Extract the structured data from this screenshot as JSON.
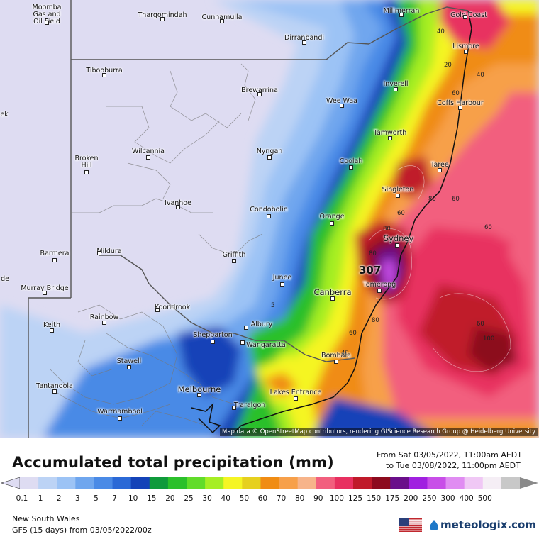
{
  "map": {
    "attribution": "Map data © OpenStreetMap contributors, rendering GIScience Research Group @ Heidelberg University",
    "max_value_label": "307",
    "contour_labels": [
      "40",
      "20",
      "40",
      "60",
      "80",
      "60",
      "60",
      "80",
      "80",
      "60",
      "80",
      "60",
      "100",
      "5",
      "40",
      "60"
    ],
    "places": [
      {
        "name": "Moomba Gas and Oil Field",
        "lines": [
          "Moomba",
          "Gas and",
          "Oil Field"
        ],
        "size": "small"
      },
      {
        "name": "Thargomindah",
        "lines": [
          "Thargomindah"
        ],
        "size": "small"
      },
      {
        "name": "Cunnamulla",
        "lines": [
          "Cunnamulla"
        ],
        "size": "small"
      },
      {
        "name": "Millmerran",
        "lines": [
          "Millmerran"
        ],
        "size": "small"
      },
      {
        "name": "Gold Coast",
        "lines": [
          "Gold Coast"
        ],
        "size": "small"
      },
      {
        "name": "Dirranbandi",
        "lines": [
          "Dirranbandi"
        ],
        "size": "small"
      },
      {
        "name": "Lismore",
        "lines": [
          "Lismore"
        ],
        "size": "small"
      },
      {
        "name": "Tibooburra",
        "lines": [
          "Tibooburra"
        ],
        "size": "small"
      },
      {
        "name": "Brewarrina",
        "lines": [
          "Brewarrina"
        ],
        "size": "small"
      },
      {
        "name": "Inverell",
        "lines": [
          "Inverell"
        ],
        "size": "small"
      },
      {
        "name": "Wee Waa",
        "lines": [
          "Wee Waa"
        ],
        "size": "small"
      },
      {
        "name": "Coffs Harbour",
        "lines": [
          "Coffs Harbour"
        ],
        "size": "small"
      },
      {
        "name": "Tamworth",
        "lines": [
          "Tamworth"
        ],
        "size": "small"
      },
      {
        "name": "Wilcannia",
        "lines": [
          "Wilcannia"
        ],
        "size": "small"
      },
      {
        "name": "Nyngan",
        "lines": [
          "Nyngan"
        ],
        "size": "small"
      },
      {
        "name": "Broken Hill",
        "lines": [
          "Broken",
          "Hill"
        ],
        "size": "small"
      },
      {
        "name": "Coolah",
        "lines": [
          "Coolah"
        ],
        "size": "small"
      },
      {
        "name": "Taree",
        "lines": [
          "Taree"
        ],
        "size": "small"
      },
      {
        "name": "Singleton",
        "lines": [
          "Singleton"
        ],
        "size": "small"
      },
      {
        "name": "Ivanhoe",
        "lines": [
          "Ivanhoe"
        ],
        "size": "small"
      },
      {
        "name": "Condobolin",
        "lines": [
          "Condobolin"
        ],
        "size": "small"
      },
      {
        "name": "Orange",
        "lines": [
          "Orange"
        ],
        "size": "small"
      },
      {
        "name": "Sydney",
        "lines": [
          "Sydney"
        ],
        "size": "big"
      },
      {
        "name": "Barmera",
        "lines": [
          "Barmera"
        ],
        "size": "small"
      },
      {
        "name": "Mildura",
        "lines": [
          "Mildura"
        ],
        "size": "small"
      },
      {
        "name": "Griffith",
        "lines": [
          "Griffith"
        ],
        "size": "small"
      },
      {
        "name": "Junee",
        "lines": [
          "Junee"
        ],
        "size": "small"
      },
      {
        "name": "Murray Bridge",
        "lines": [
          "Murray Bridge"
        ],
        "size": "small"
      },
      {
        "name": "Canberra",
        "lines": [
          "Canberra"
        ],
        "size": "big"
      },
      {
        "name": "Tomerong",
        "lines": [
          "Tomerong"
        ],
        "size": "small"
      },
      {
        "name": "Koondrook",
        "lines": [
          "Koondrook"
        ],
        "size": "small"
      },
      {
        "name": "Rainbow",
        "lines": [
          "Rainbow"
        ],
        "size": "small"
      },
      {
        "name": "Albury",
        "lines": [
          "Albury"
        ],
        "size": "small"
      },
      {
        "name": "Keith",
        "lines": [
          "Keith"
        ],
        "size": "small"
      },
      {
        "name": "Shepparton",
        "lines": [
          "Shepparton"
        ],
        "size": "small"
      },
      {
        "name": "Wangaratta",
        "lines": [
          "Wangaratta"
        ],
        "size": "small"
      },
      {
        "name": "Bombala",
        "lines": [
          "Bombala"
        ],
        "size": "small"
      },
      {
        "name": "Stawell",
        "lines": [
          "Stawell"
        ],
        "size": "small"
      },
      {
        "name": "Tantanoola",
        "lines": [
          "Tantanoola"
        ],
        "size": "small"
      },
      {
        "name": "Melbourne",
        "lines": [
          "Melbourne"
        ],
        "size": "big"
      },
      {
        "name": "Lakes Entrance",
        "lines": [
          "Lakes Entrance"
        ],
        "size": "small"
      },
      {
        "name": "Warrnambool",
        "lines": [
          "Warrnambool"
        ],
        "size": "small"
      },
      {
        "name": "Traralgon",
        "lines": [
          "Traralgon"
        ],
        "size": "small"
      },
      {
        "name": "ek",
        "lines": [
          "ek"
        ],
        "size": "small"
      },
      {
        "name": "de",
        "lines": [
          "de"
        ],
        "size": "small"
      }
    ]
  },
  "legend": {
    "title": "Accumulated total precipitation (mm)",
    "period_from": "From Sat 03/05/2022, 11:00am AEDT",
    "period_to": "to Tue 03/08/2022, 11:00pm AEDT",
    "ticks": [
      "0.1",
      "1",
      "2",
      "3",
      "5",
      "7",
      "10",
      "15",
      "20",
      "25",
      "30",
      "40",
      "50",
      "60",
      "70",
      "80",
      "90",
      "100",
      "125",
      "150",
      "175",
      "200",
      "250",
      "300",
      "400",
      "500"
    ],
    "colors": [
      "#dedcf2",
      "#bcd3f5",
      "#9cc3f5",
      "#6fa6ee",
      "#4a8ae6",
      "#2b69d6",
      "#1443b8",
      "#0f9a3b",
      "#2bc02b",
      "#61dc2a",
      "#a6ee24",
      "#f5f524",
      "#e6d01e",
      "#f08c14",
      "#f7a04a",
      "#f7b48a",
      "#f25f7e",
      "#e83060",
      "#c01a2a",
      "#8c0a1e",
      "#6a0f8a",
      "#a020e0",
      "#c84ee8",
      "#e08cf2",
      "#f0c8f5",
      "#f5eef5",
      "#c8c8c8"
    ]
  },
  "footer": {
    "region": "New South Wales",
    "model": "GFS (15 days) from  03/05/2022/00z",
    "brand": "meteologix.com",
    "flag": "us-flag-icon"
  }
}
